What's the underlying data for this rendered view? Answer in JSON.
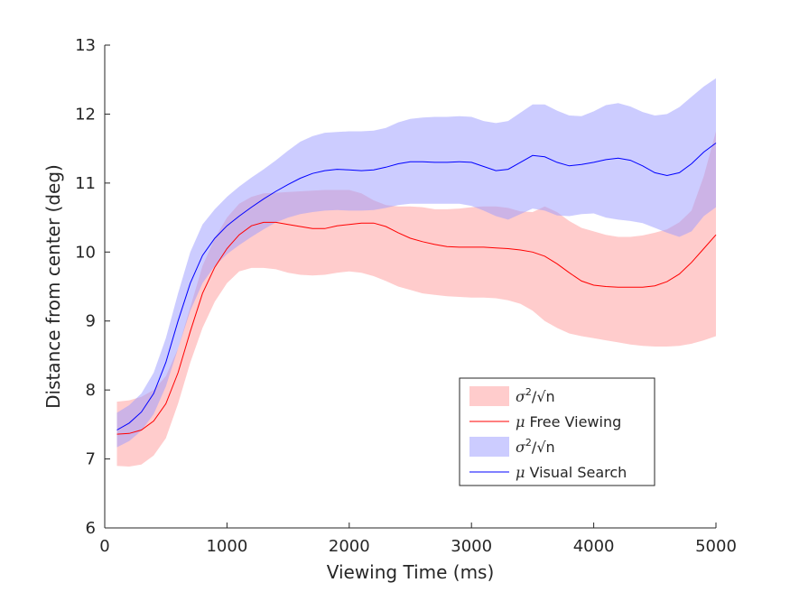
{
  "chart_data": {
    "type": "line",
    "title": "",
    "xlabel": "Viewing Time (ms)",
    "ylabel": "Distance from center (deg)",
    "xlim": [
      0,
      5000
    ],
    "ylim": [
      6,
      13
    ],
    "xticks": [
      0,
      1000,
      2000,
      3000,
      4000,
      5000
    ],
    "yticks": [
      6,
      7,
      8,
      9,
      10,
      11,
      12,
      13
    ],
    "grid": false,
    "legend_position": "lower-right",
    "series": [
      {
        "name": "Free Viewing",
        "band_label_base": "σ",
        "band_label_exp": "2",
        "band_label_rest": "/√n",
        "mean_prefix": "μ",
        "mean_label": "Free Viewing",
        "line_color": "#ff0000",
        "band_color": "#ff9999",
        "x": [
          100,
          200,
          300,
          400,
          500,
          600,
          700,
          800,
          900,
          1000,
          1100,
          1200,
          1300,
          1400,
          1500,
          1600,
          1700,
          1800,
          1900,
          2000,
          2100,
          2200,
          2300,
          2400,
          2500,
          2600,
          2700,
          2800,
          2900,
          3000,
          3100,
          3200,
          3300,
          3400,
          3500,
          3600,
          3700,
          3800,
          3900,
          4000,
          4100,
          4200,
          4300,
          4400,
          4500,
          4600,
          4700,
          4800,
          4900,
          5000
        ],
        "mean": [
          7.36,
          7.37,
          7.42,
          7.55,
          7.8,
          8.25,
          8.85,
          9.4,
          9.78,
          10.05,
          10.25,
          10.38,
          10.43,
          10.43,
          10.4,
          10.37,
          10.34,
          10.34,
          10.38,
          10.4,
          10.42,
          10.42,
          10.37,
          10.28,
          10.2,
          10.15,
          10.11,
          10.08,
          10.07,
          10.07,
          10.07,
          10.06,
          10.05,
          10.03,
          10.0,
          9.94,
          9.83,
          9.7,
          9.58,
          9.52,
          9.5,
          9.49,
          9.49,
          9.49,
          9.51,
          9.57,
          9.68,
          9.85,
          10.05,
          10.25
        ],
        "upper": [
          7.83,
          7.85,
          7.9,
          8.0,
          8.2,
          8.6,
          9.2,
          9.8,
          10.2,
          10.5,
          10.7,
          10.8,
          10.85,
          10.86,
          10.87,
          10.88,
          10.89,
          10.9,
          10.9,
          10.9,
          10.85,
          10.75,
          10.68,
          10.66,
          10.66,
          10.65,
          10.62,
          10.62,
          10.63,
          10.65,
          10.66,
          10.66,
          10.64,
          10.59,
          10.58,
          10.66,
          10.58,
          10.45,
          10.35,
          10.3,
          10.25,
          10.22,
          10.22,
          10.24,
          10.28,
          10.33,
          10.43,
          10.6,
          11.1,
          11.75
        ],
        "lower": [
          6.9,
          6.89,
          6.92,
          7.05,
          7.3,
          7.8,
          8.4,
          8.9,
          9.28,
          9.55,
          9.72,
          9.77,
          9.77,
          9.75,
          9.7,
          9.67,
          9.66,
          9.67,
          9.7,
          9.72,
          9.7,
          9.65,
          9.58,
          9.5,
          9.45,
          9.4,
          9.38,
          9.36,
          9.35,
          9.34,
          9.34,
          9.33,
          9.3,
          9.25,
          9.15,
          9.0,
          8.9,
          8.82,
          8.78,
          8.75,
          8.72,
          8.69,
          8.66,
          8.64,
          8.63,
          8.63,
          8.64,
          8.67,
          8.72,
          8.78
        ]
      },
      {
        "name": "Visual Search",
        "band_label_base": "σ",
        "band_label_exp": "2",
        "band_label_rest": "/√n",
        "mean_prefix": "μ",
        "mean_label": "Visual Search",
        "line_color": "#0000ff",
        "band_color": "#9999ff",
        "x": [
          100,
          200,
          300,
          400,
          500,
          600,
          700,
          800,
          900,
          1000,
          1100,
          1200,
          1300,
          1400,
          1500,
          1600,
          1700,
          1800,
          1900,
          2000,
          2100,
          2200,
          2300,
          2400,
          2500,
          2600,
          2700,
          2800,
          2900,
          3000,
          3100,
          3200,
          3300,
          3400,
          3500,
          3600,
          3700,
          3800,
          3900,
          4000,
          4100,
          4200,
          4300,
          4400,
          4500,
          4600,
          4700,
          4800,
          4900,
          5000
        ],
        "mean": [
          7.42,
          7.52,
          7.68,
          7.95,
          8.4,
          9.0,
          9.55,
          9.95,
          10.2,
          10.38,
          10.52,
          10.65,
          10.77,
          10.88,
          10.98,
          11.07,
          11.14,
          11.18,
          11.2,
          11.19,
          11.18,
          11.19,
          11.23,
          11.28,
          11.31,
          11.31,
          11.3,
          11.3,
          11.31,
          11.3,
          11.24,
          11.18,
          11.2,
          11.3,
          11.4,
          11.38,
          11.3,
          11.25,
          11.27,
          11.3,
          11.34,
          11.36,
          11.33,
          11.25,
          11.15,
          11.11,
          11.15,
          11.28,
          11.45,
          11.58
        ],
        "upper": [
          7.67,
          7.78,
          7.95,
          8.25,
          8.75,
          9.4,
          10.0,
          10.4,
          10.62,
          10.8,
          10.95,
          11.08,
          11.2,
          11.33,
          11.47,
          11.6,
          11.68,
          11.73,
          11.74,
          11.75,
          11.75,
          11.76,
          11.8,
          11.88,
          11.93,
          11.95,
          11.96,
          11.96,
          11.97,
          11.96,
          11.9,
          11.87,
          11.9,
          12.02,
          12.14,
          12.14,
          12.05,
          11.98,
          11.97,
          12.04,
          12.13,
          12.16,
          12.11,
          12.03,
          11.98,
          12.0,
          12.1,
          12.25,
          12.4,
          12.52
        ],
        "lower": [
          7.17,
          7.26,
          7.41,
          7.65,
          8.05,
          8.6,
          9.15,
          9.55,
          9.8,
          9.97,
          10.1,
          10.22,
          10.33,
          10.43,
          10.5,
          10.55,
          10.58,
          10.6,
          10.61,
          10.6,
          10.6,
          10.61,
          10.64,
          10.68,
          10.7,
          10.7,
          10.7,
          10.7,
          10.7,
          10.67,
          10.6,
          10.52,
          10.47,
          10.55,
          10.63,
          10.6,
          10.53,
          10.52,
          10.55,
          10.56,
          10.5,
          10.47,
          10.45,
          10.42,
          10.35,
          10.28,
          10.22,
          10.3,
          10.52,
          10.65
        ]
      }
    ]
  }
}
